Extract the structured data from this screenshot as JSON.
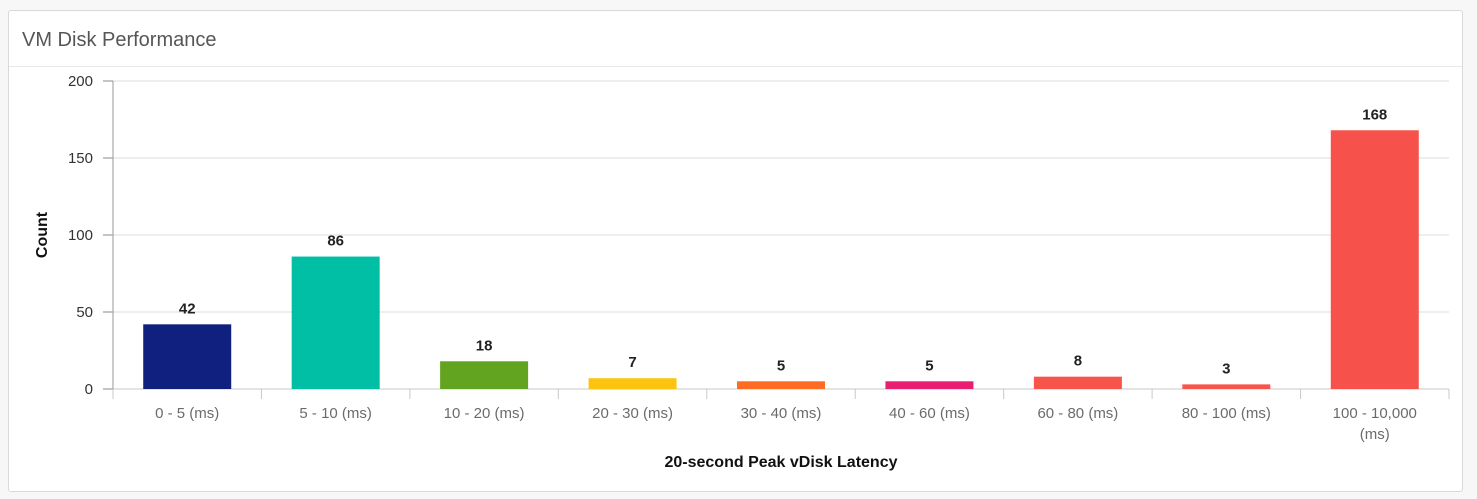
{
  "panel": {
    "title": "VM Disk Performance"
  },
  "chart_data": {
    "type": "bar",
    "xlabel": "20-second Peak vDisk Latency",
    "ylabel": "Count",
    "ylim": [
      0,
      200
    ],
    "yticks": [
      0,
      50,
      100,
      150,
      200
    ],
    "grid": true,
    "legend": "none",
    "categories": [
      [
        "0 - 5 (ms)"
      ],
      [
        "5 - 10 (ms)"
      ],
      [
        "10 - 20 (ms)"
      ],
      [
        "20 - 30 (ms)"
      ],
      [
        "30 - 40 (ms)"
      ],
      [
        "40 - 60 (ms)"
      ],
      [
        "60 - 80 (ms)"
      ],
      [
        "80 - 100 (ms)"
      ],
      [
        "100 - 10,000",
        "(ms)"
      ]
    ],
    "values": [
      42,
      86,
      18,
      7,
      5,
      5,
      8,
      3,
      168
    ],
    "colors": [
      "#10207f",
      "#00bfa5",
      "#62a420",
      "#fcc30f",
      "#ff6b22",
      "#e91e72",
      "#f7544c",
      "#f7544c",
      "#f7514b"
    ]
  }
}
